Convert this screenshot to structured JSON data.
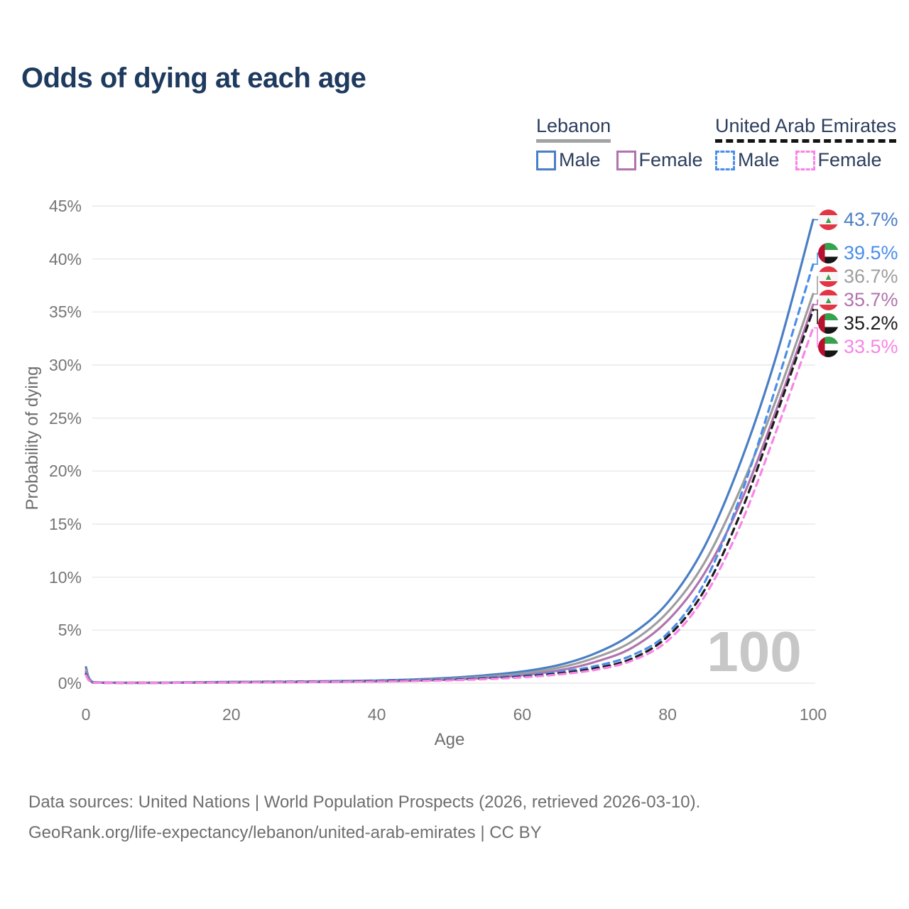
{
  "title": "Odds of dying at each age",
  "watermark": "100",
  "colors": {
    "title": "#1f3a5f",
    "legend_text": "#2c3e5d",
    "axis_text": "#757575",
    "gridline": "#e9e9e9",
    "watermark": "#c7c7c7",
    "footer_text": "#6e6e6e",
    "lebanon_male": "#4a7ec5",
    "lebanon_female": "#b173ae",
    "lebanon_both": "#9e9e9e",
    "uae_male": "#4a8eea",
    "uae_female": "#f884e6",
    "uae_both": "#1c1c1c"
  },
  "legend": {
    "groups": [
      {
        "label": "Lebanon",
        "line_style": "solid",
        "items": [
          {
            "label": "Male",
            "color_key": "lebanon_male",
            "dashed": false
          },
          {
            "label": "Female",
            "color_key": "lebanon_female",
            "dashed": false
          }
        ]
      },
      {
        "label": "United Arab Emirates",
        "line_style": "dashed",
        "items": [
          {
            "label": "Male",
            "color_key": "uae_male",
            "dashed": true
          },
          {
            "label": "Female",
            "color_key": "uae_female",
            "dashed": true
          }
        ]
      }
    ]
  },
  "axes": {
    "x": {
      "label": "Age",
      "ticks": [
        0,
        20,
        40,
        60,
        80,
        100
      ],
      "range": [
        0,
        100
      ]
    },
    "y": {
      "label": "Probability of dying",
      "ticks": [
        "0%",
        "5%",
        "10%",
        "15%",
        "20%",
        "25%",
        "30%",
        "35%",
        "40%",
        "45%"
      ],
      "range_pct": [
        0,
        45
      ]
    }
  },
  "chart_data": {
    "type": "line",
    "title": "Odds of dying at each age",
    "xlabel": "Age",
    "ylabel": "Probability of dying",
    "xlim": [
      0,
      100
    ],
    "ylim_pct": [
      0,
      45
    ],
    "grid": "horizontal",
    "hover_age_indicator": "100",
    "ages": [
      0,
      1,
      5,
      10,
      15,
      20,
      25,
      30,
      35,
      40,
      45,
      50,
      55,
      60,
      65,
      70,
      75,
      80,
      85,
      90,
      95,
      100
    ],
    "series": [
      {
        "key": "lebanon-male",
        "name": "Lebanon Male",
        "country": "Lebanon",
        "sex": "Male",
        "style": "solid",
        "color_key": "lebanon_male",
        "flag": "lb",
        "end_label": "43.7%",
        "end_value_pct": 43.7,
        "values_pct": [
          1.5,
          0.1,
          0.05,
          0.05,
          0.08,
          0.12,
          0.14,
          0.16,
          0.2,
          0.25,
          0.35,
          0.5,
          0.75,
          1.1,
          1.7,
          2.8,
          4.6,
          7.6,
          12.8,
          20.8,
          31.0,
          43.7
        ]
      },
      {
        "key": "lebanon-both",
        "name": "Lebanon Both sexes",
        "country": "Lebanon",
        "sex": "Both",
        "style": "solid",
        "color_key": "lebanon_both",
        "flag": "lb",
        "end_label": "36.7%",
        "end_value_pct": 36.7,
        "values_pct": [
          1.25,
          0.08,
          0.04,
          0.04,
          0.06,
          0.09,
          0.11,
          0.13,
          0.16,
          0.2,
          0.28,
          0.4,
          0.6,
          0.9,
          1.45,
          2.4,
          3.9,
          6.7,
          11.3,
          18.3,
          26.9,
          36.7
        ]
      },
      {
        "key": "lebanon-female",
        "name": "Lebanon Female",
        "country": "Lebanon",
        "sex": "Female",
        "style": "solid",
        "color_key": "lebanon_female",
        "flag": "lb",
        "end_label": "35.7%",
        "end_value_pct": 35.7,
        "values_pct": [
          1.05,
          0.07,
          0.03,
          0.03,
          0.05,
          0.06,
          0.08,
          0.1,
          0.13,
          0.17,
          0.23,
          0.33,
          0.5,
          0.75,
          1.2,
          2.0,
          3.3,
          5.9,
          10.3,
          17.0,
          25.9,
          35.7
        ]
      },
      {
        "key": "uae-male",
        "name": "United Arab Emirates Male",
        "country": "United Arab Emirates",
        "sex": "Male",
        "style": "dashed",
        "color_key": "uae_male",
        "flag": "ae",
        "end_label": "39.5%",
        "end_value_pct": 39.5,
        "values_pct": [
          0.9,
          0.06,
          0.04,
          0.04,
          0.07,
          0.1,
          0.12,
          0.14,
          0.17,
          0.21,
          0.27,
          0.36,
          0.5,
          0.72,
          1.05,
          1.6,
          2.6,
          4.7,
          9.4,
          17.6,
          28.2,
          39.5
        ]
      },
      {
        "key": "uae-both",
        "name": "United Arab Emirates Both sexes",
        "country": "United Arab Emirates",
        "sex": "Both",
        "style": "dashed",
        "color_key": "uae_both",
        "flag": "ae",
        "end_label": "35.2%",
        "end_value_pct": 35.2,
        "values_pct": [
          0.82,
          0.05,
          0.03,
          0.03,
          0.06,
          0.08,
          0.1,
          0.12,
          0.14,
          0.18,
          0.23,
          0.31,
          0.43,
          0.62,
          0.92,
          1.4,
          2.3,
          4.4,
          8.7,
          16.0,
          25.4,
          35.2
        ]
      },
      {
        "key": "uae-female",
        "name": "United Arab Emirates Female",
        "country": "United Arab Emirates",
        "sex": "Female",
        "style": "dashed",
        "color_key": "uae_female",
        "flag": "ae",
        "end_label": "33.5%",
        "end_value_pct": 33.5,
        "values_pct": [
          0.75,
          0.05,
          0.03,
          0.03,
          0.05,
          0.07,
          0.08,
          0.1,
          0.12,
          0.15,
          0.2,
          0.27,
          0.38,
          0.55,
          0.82,
          1.25,
          2.1,
          4.0,
          8.1,
          14.9,
          23.9,
          33.5
        ]
      }
    ]
  },
  "footer": {
    "line1": "Data sources: United Nations | World Population Prospects (2026, retrieved 2026-03-10).",
    "line2": "GeoRank.org/life-expectancy/lebanon/united-arab-emirates | CC BY"
  }
}
